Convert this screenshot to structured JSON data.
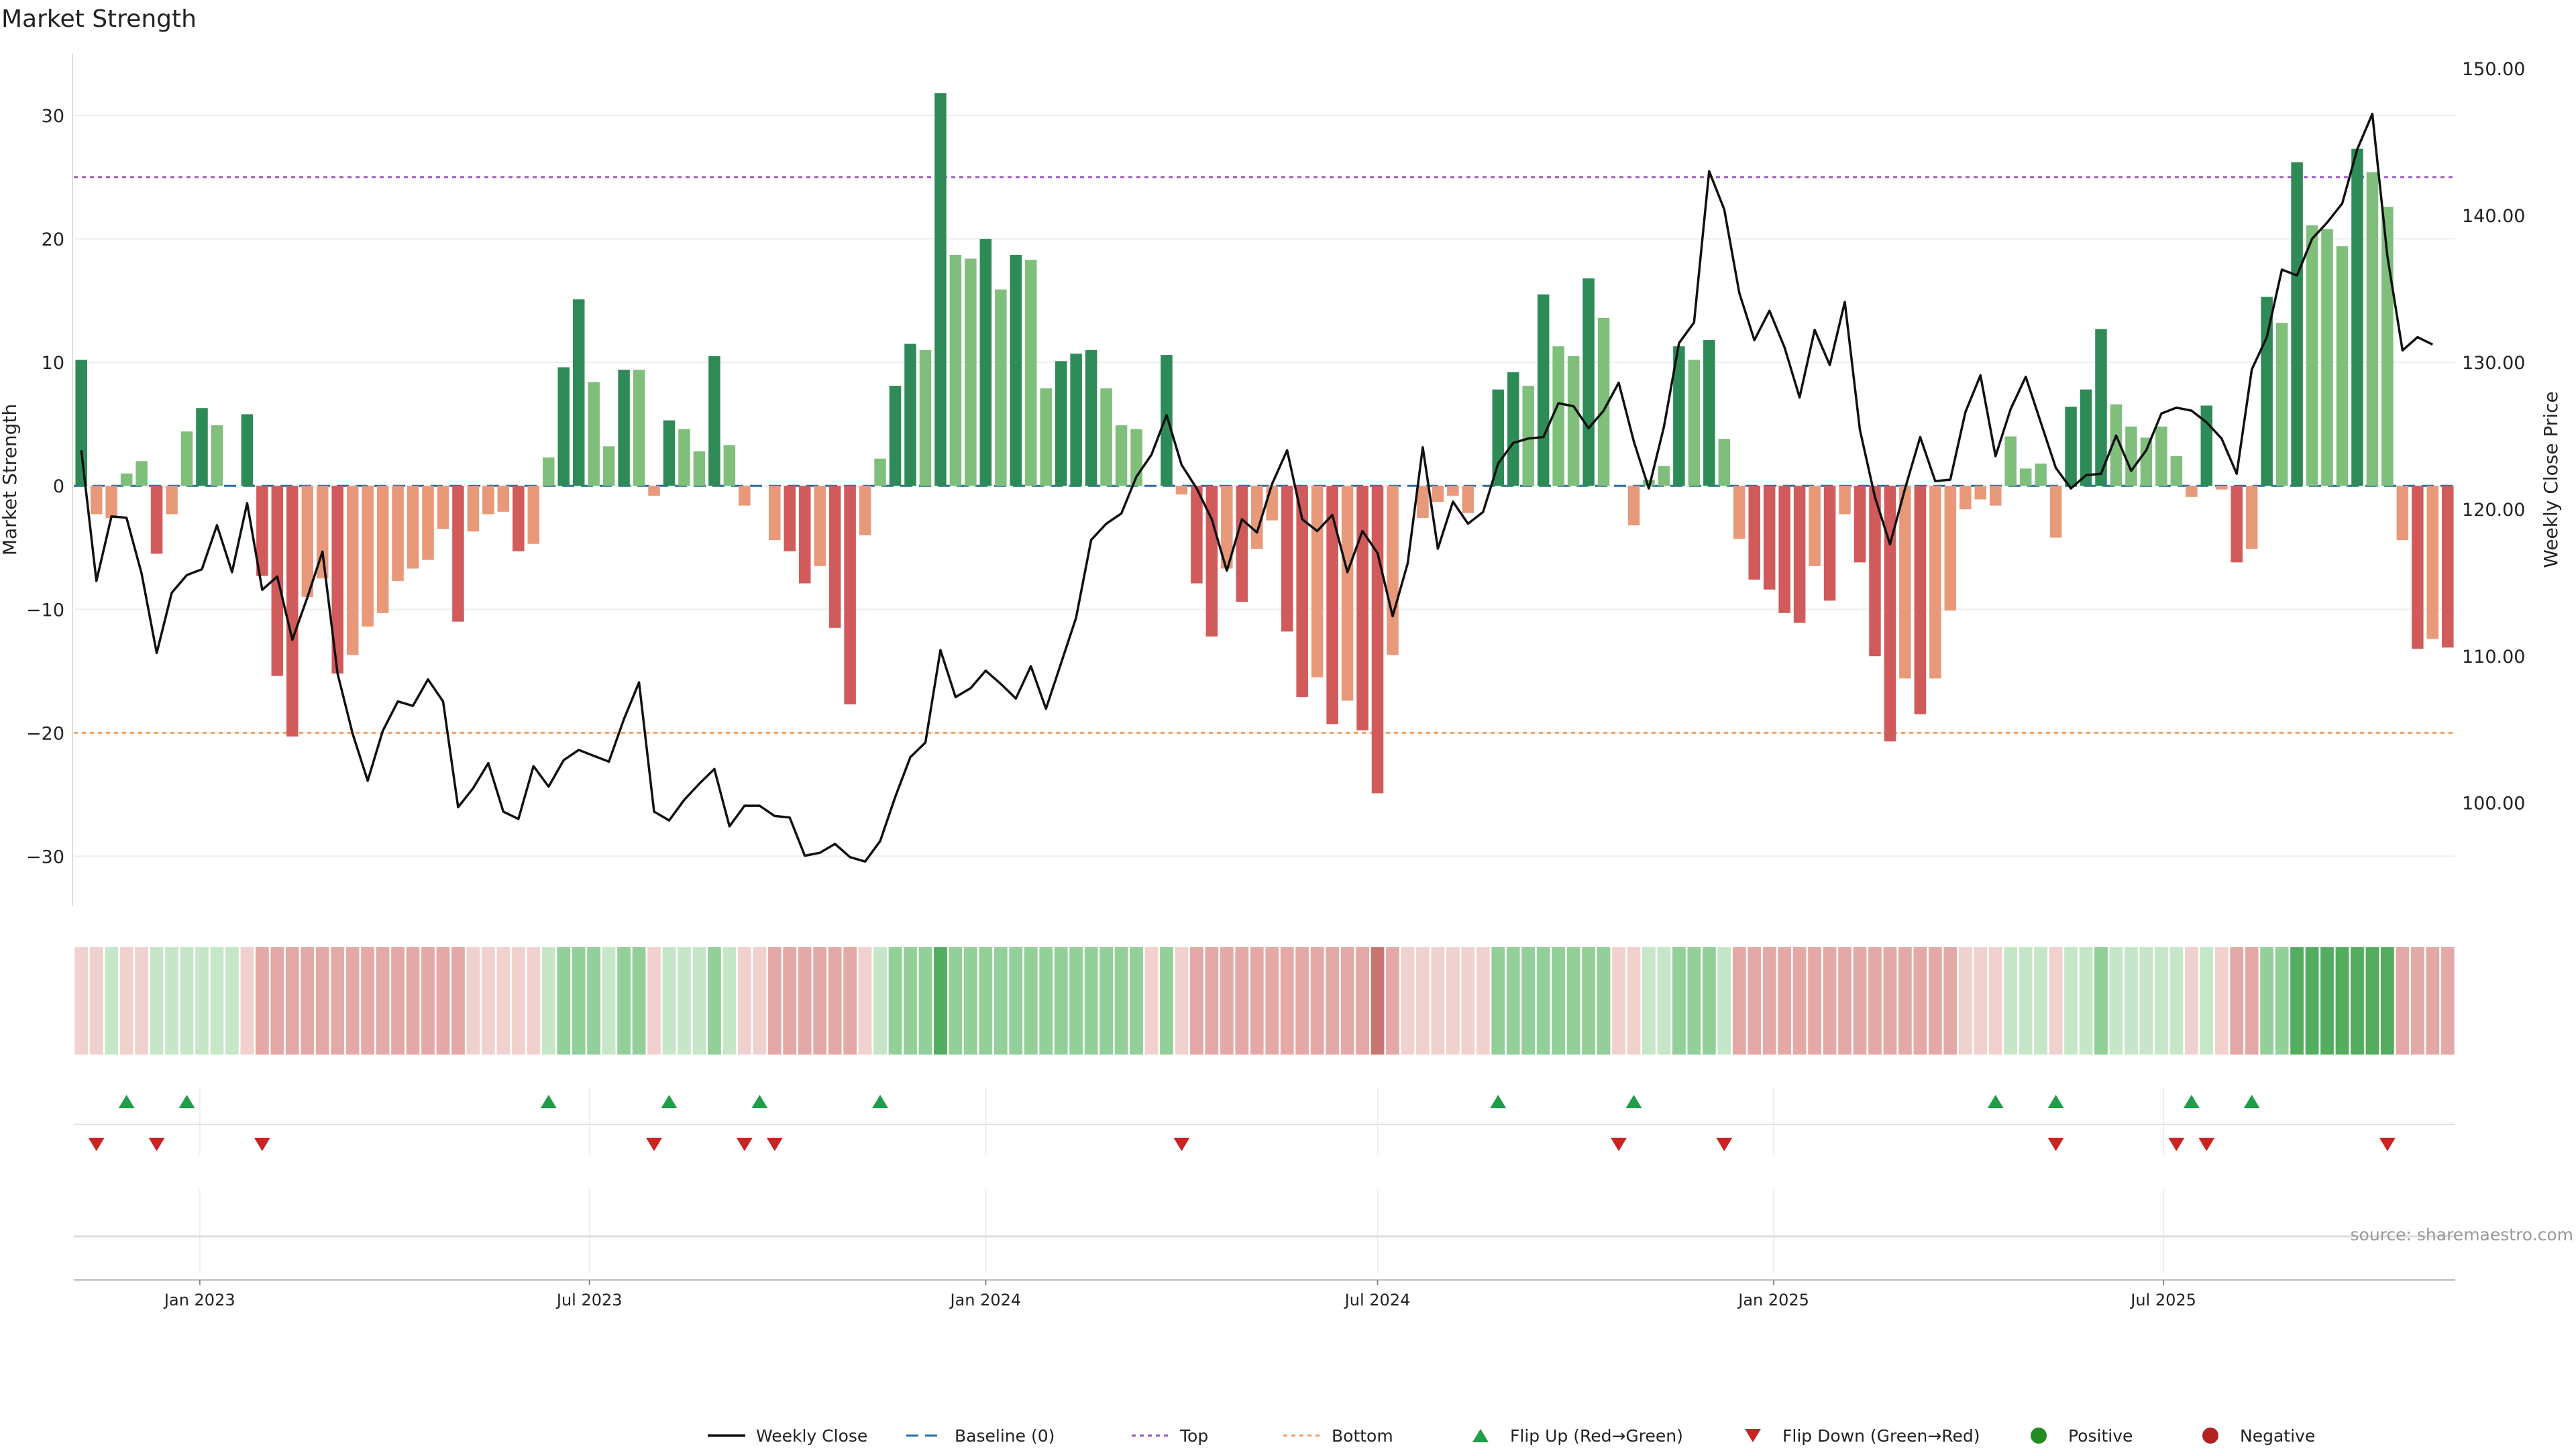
{
  "chart_data": {
    "type": "bar",
    "title": "Market Strength",
    "ylabel_left": "Market Strength",
    "ylabel_right": "Weekly Close Price",
    "source": "source: sharemaestro.com",
    "ylim_left": [
      -34,
      35
    ],
    "ylim_right": [
      93,
      151
    ],
    "yticks_left": [
      30,
      20,
      10,
      0,
      -10,
      -20,
      -30
    ],
    "ytick_labels_left": [
      "30",
      "20",
      "10",
      "0",
      "−10",
      "−20",
      "−30"
    ],
    "yticks_right": [
      150,
      140,
      130,
      120,
      110,
      100
    ],
    "ytick_labels_right": [
      "150.00",
      "140.00",
      "130.00",
      "120.00",
      "110.00",
      "100.00"
    ],
    "x_start": "2022-11-07",
    "x_end": "2025-10-20",
    "x_step_weeks": 1,
    "x_ticks": [
      {
        "date": "2023-01-01",
        "label": "Jan 2023"
      },
      {
        "date": "2023-07-01",
        "label": "Jul 2023"
      },
      {
        "date": "2024-01-01",
        "label": "Jan 2024"
      },
      {
        "date": "2024-07-01",
        "label": "Jul 2024"
      },
      {
        "date": "2025-01-01",
        "label": "Jan 2025"
      },
      {
        "date": "2025-07-01",
        "label": "Jul 2025"
      }
    ],
    "reference_lines": {
      "top": 25,
      "bottom": -20,
      "baseline": 0
    },
    "strength": [
      10.2,
      -2.3,
      -2.6,
      1,
      2,
      -5.5,
      -2.3,
      4.4,
      6.3,
      4.9,
      0,
      5.8,
      -7.3,
      -15.4,
      -20.3,
      -9,
      -7.5,
      -15.2,
      -13.7,
      -11.4,
      -10.3,
      -7.7,
      -6.7,
      -6,
      -3.5,
      -11,
      -3.7,
      -2.3,
      -2.1,
      -5.3,
      -4.7,
      2.3,
      9.6,
      15.1,
      8.4,
      3.2,
      9.4,
      9.4,
      -0.8,
      5.3,
      4.6,
      2.8,
      10.5,
      3.3,
      -1.6,
      0,
      -4.4,
      -5.3,
      -7.9,
      -6.5,
      -11.5,
      -17.7,
      -4,
      2.2,
      8.1,
      11.5,
      11,
      31.8,
      18.7,
      18.4,
      20,
      15.9,
      18.7,
      18.3,
      7.9,
      10.1,
      10.7,
      11,
      7.9,
      4.9,
      4.6,
      0,
      10.6,
      -0.7,
      -7.9,
      -12.2,
      -6.7,
      -9.4,
      -5.1,
      -2.8,
      -11.8,
      -17.1,
      -15.5,
      -19.3,
      -17.4,
      -19.8,
      -24.9,
      -13.7,
      0,
      -2.6,
      -1.3,
      -0.8,
      -2.2,
      0,
      7.8,
      9.2,
      8.1,
      15.5,
      11.3,
      10.5,
      16.8,
      13.6,
      0,
      -3.2,
      0.5,
      1.6,
      11.3,
      10.2,
      11.8,
      3.8,
      -4.3,
      -7.6,
      -8.4,
      -10.3,
      -11.1,
      -6.5,
      -9.3,
      -2.3,
      -6.2,
      -13.8,
      -20.7,
      -15.6,
      -18.5,
      -15.6,
      -10.1,
      -1.9,
      -1.1,
      -1.6,
      4,
      1.4,
      1.8,
      -4.2,
      6.4,
      7.8,
      12.7,
      6.6,
      4.8,
      3.9,
      4.8,
      2.4,
      -0.9,
      6.5,
      -0.3,
      -6.2,
      -5.1,
      15.3,
      13.2,
      26.2,
      21.1,
      20.8,
      19.4,
      27.3,
      25.4,
      22.6,
      -4.4,
      -13.2,
      -12.4,
      -13.1
    ],
    "close": [
      124,
      115.1,
      119.5,
      119.4,
      115.6,
      110.2,
      114.3,
      115.5,
      115.9,
      118.9,
      115.7,
      120.4,
      114.5,
      115.4,
      111.1,
      114,
      117.1,
      108.8,
      104.7,
      101.5,
      104.9,
      106.9,
      106.6,
      108.4,
      106.9,
      99.7,
      101,
      102.7,
      99.4,
      98.9,
      102.5,
      101.1,
      102.9,
      103.6,
      103.2,
      102.8,
      105.7,
      108.2,
      99.4,
      98.8,
      100.2,
      101.3,
      102.3,
      98.4,
      99.8,
      99.8,
      99.1,
      99,
      96.4,
      96.6,
      97.2,
      96.3,
      96,
      97.4,
      100.4,
      103.1,
      104.1,
      110.4,
      107.2,
      107.8,
      109,
      108.1,
      107.1,
      109.3,
      106.4,
      109.5,
      112.6,
      117.9,
      119,
      119.7,
      122.2,
      123.7,
      126.4,
      123,
      121.4,
      119.3,
      115.8,
      119.3,
      118.4,
      121.7,
      124,
      119.3,
      118.5,
      119.6,
      115.7,
      118.5,
      117,
      112.7,
      116.3,
      124.2,
      117.3,
      120.5,
      119,
      119.8,
      123.1,
      124.5,
      124.8,
      124.9,
      127.2,
      127,
      125.5,
      126.7,
      128.6,
      124.6,
      121.4,
      125.6,
      131.3,
      132.7,
      143,
      140.4,
      134.7,
      131.5,
      133.5,
      131,
      127.6,
      132.2,
      129.8,
      134.1,
      125.4,
      120.8,
      117.6,
      121.4,
      124.9,
      121.9,
      122,
      126.6,
      129.1,
      123.6,
      126.8,
      129,
      125.9,
      122.8,
      121.4,
      122.3,
      122.4,
      125,
      122.6,
      124,
      126.5,
      126.9,
      126.7,
      125.9,
      124.8,
      122.4,
      129.5,
      131.7,
      136.3,
      135.9,
      138.4,
      139.5,
      140.8,
      144.5,
      146.9,
      137.2,
      130.8,
      131.7,
      131.2
    ],
    "heat_strip": [
      -1,
      -1,
      1,
      -1,
      -1,
      1,
      1,
      1,
      1,
      1,
      1,
      -1,
      -2,
      -2,
      -2,
      -2,
      -2,
      -2,
      -2,
      -2,
      -2,
      -2,
      -2,
      -2,
      -2,
      -2,
      -1,
      -1,
      -1,
      -1,
      -1,
      1,
      2,
      2,
      2,
      1,
      2,
      2,
      -1,
      1,
      1,
      1,
      2,
      1,
      -1,
      -1,
      -2,
      -2,
      -2,
      -2,
      -2,
      -2,
      -1,
      1,
      2,
      2,
      2,
      3,
      2,
      2,
      2,
      2,
      2,
      2,
      2,
      2,
      2,
      2,
      2,
      2,
      2,
      -1,
      2,
      -1,
      -2,
      -2,
      -2,
      -2,
      -2,
      -2,
      -2,
      -2,
      -2,
      -2,
      -2,
      -2,
      -3,
      -2,
      -1,
      -1,
      -1,
      -1,
      -1,
      -1,
      2,
      2,
      2,
      2,
      2,
      2,
      2,
      2,
      -1,
      -1,
      1,
      1,
      2,
      2,
      2,
      1,
      -2,
      -2,
      -2,
      -2,
      -2,
      -2,
      -2,
      -2,
      -2,
      -2,
      -2,
      -2,
      -2,
      -2,
      -2,
      -1,
      -1,
      -1,
      1,
      1,
      1,
      -1,
      1,
      1,
      2,
      1,
      1,
      1,
      1,
      1,
      -1,
      1,
      -1,
      -2,
      -2,
      2,
      2,
      3,
      3,
      3,
      3,
      3,
      3,
      3,
      -2,
      -2,
      -2,
      -2
    ],
    "flip_up_weeks": [
      3,
      7,
      31,
      39,
      45,
      53,
      94,
      103,
      127,
      131,
      140,
      144
    ],
    "flip_down_weeks": [
      1,
      5,
      12,
      38,
      44,
      46,
      73,
      102,
      109,
      131,
      139,
      141,
      153
    ],
    "legend": [
      "Weekly Close",
      "Baseline (0)",
      "Top",
      "Bottom",
      "Flip Up (Red→Green)",
      "Flip Down (Green→Red)",
      "Positive",
      "Negative"
    ],
    "colors": {
      "bar_pos_strong": "#2e8b57",
      "bar_pos_light": "#7fbf7b",
      "bar_neg_strong": "#d15b5b",
      "bar_neg_light": "#e8997a",
      "line": "#111111",
      "top_line": "#9b59b6",
      "bottom_line": "#f4a261",
      "baseline": "#2b6fa6",
      "flip_up": "#1e9e48",
      "flip_down": "#cc2222",
      "positive_dot": "#228b22",
      "negative_dot": "#b22222"
    }
  }
}
